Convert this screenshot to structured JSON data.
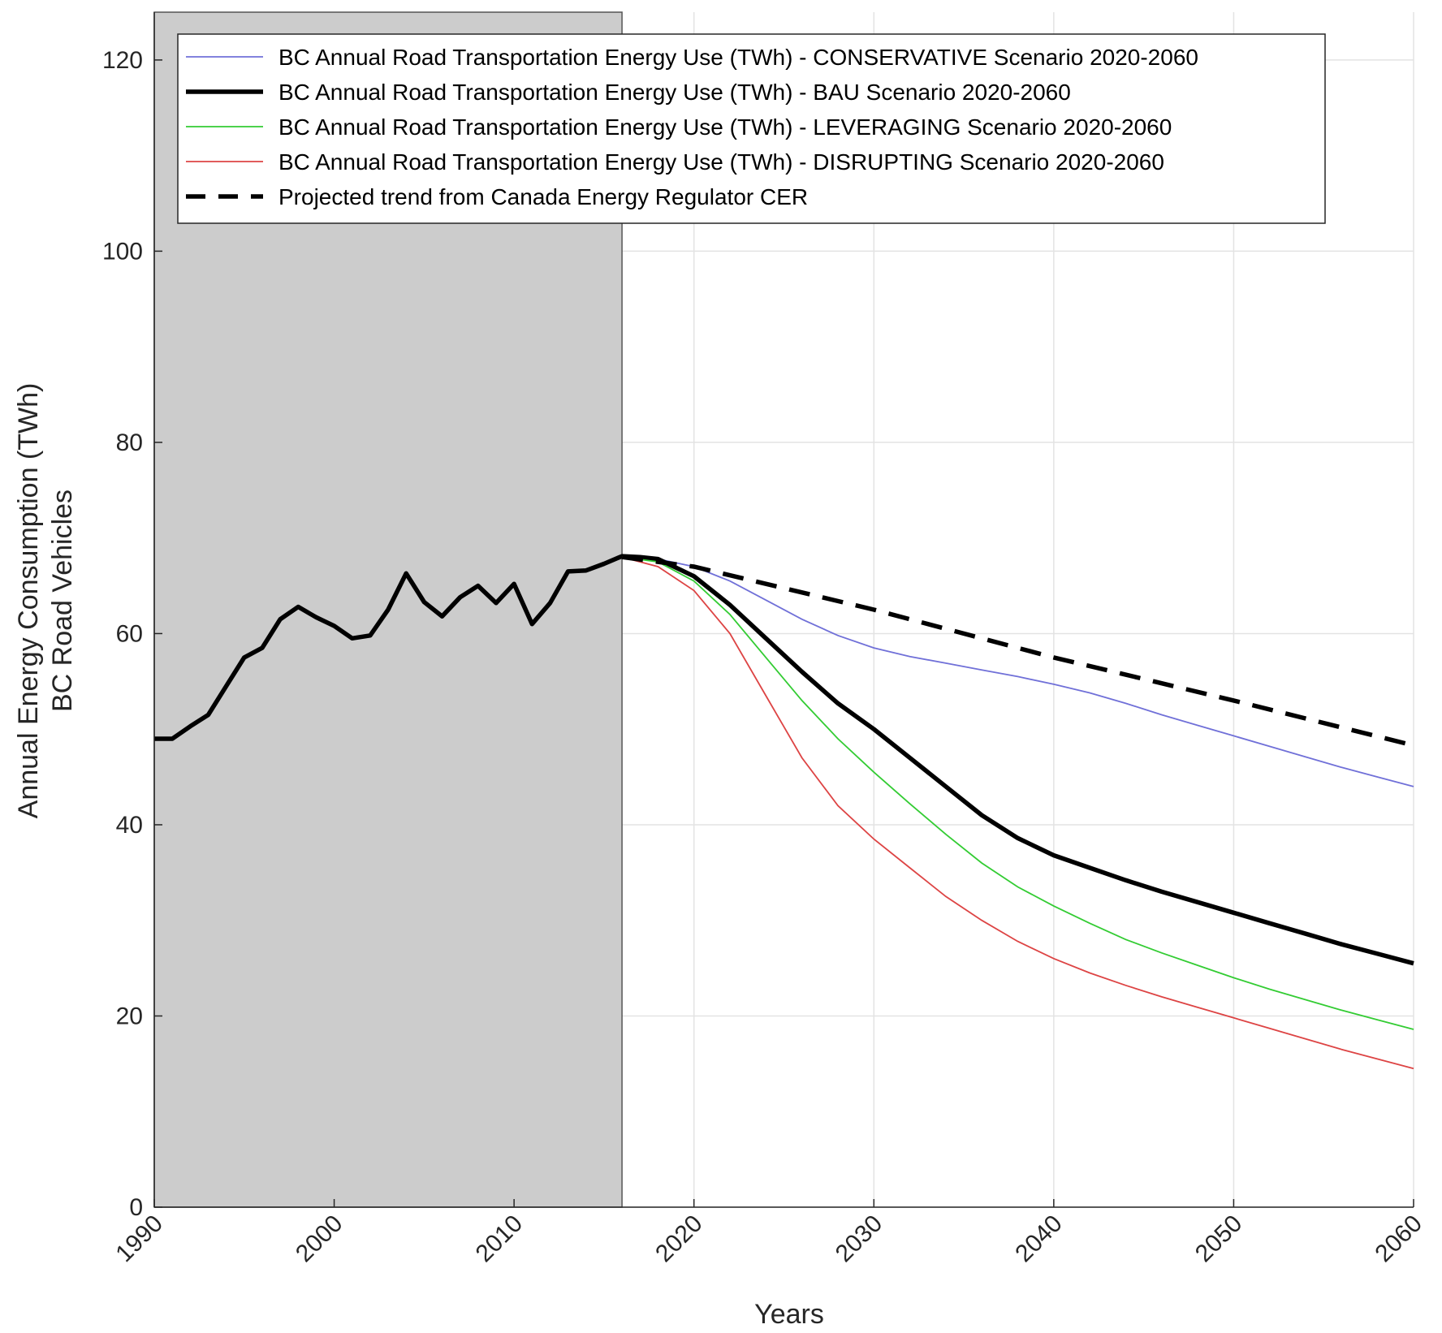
{
  "chart_data": {
    "type": "line",
    "xlabel": "Years",
    "ylabel_lines": [
      "Annual Energy Consumption (TWh)",
      "BC Road Vehicles"
    ],
    "xlim": [
      1990,
      2060
    ],
    "ylim": [
      0,
      125
    ],
    "x_ticks": [
      1990,
      2000,
      2010,
      2020,
      2030,
      2040,
      2050,
      2060
    ],
    "y_ticks": [
      0,
      20,
      40,
      60,
      80,
      100,
      120
    ],
    "grid": true,
    "legend_position": "top",
    "historical_shading": {
      "from": 1990,
      "to": 2016,
      "color": "#cccccc"
    },
    "series": [
      {
        "name": "BC Annual Road Transportation Energy Use (TWh) - CONSERVATIVE Scenario 2020-2060",
        "color": "#7070d8",
        "style": "thin",
        "x": [
          2016,
          2018,
          2020,
          2022,
          2024,
          2026,
          2028,
          2030,
          2032,
          2034,
          2036,
          2038,
          2040,
          2042,
          2044,
          2046,
          2048,
          2050,
          2052,
          2054,
          2056,
          2058,
          2060
        ],
        "values": [
          68.0,
          67.8,
          67.0,
          65.5,
          63.5,
          61.5,
          59.8,
          58.5,
          57.6,
          56.9,
          56.2,
          55.5,
          54.7,
          53.8,
          52.7,
          51.5,
          50.4,
          49.3,
          48.2,
          47.1,
          46.0,
          45.0,
          44.0
        ]
      },
      {
        "name": "BC Annual Road Transportation Energy Use (TWh) - BAU Scenario 2020-2060",
        "color": "#000000",
        "style": "thick",
        "x": [
          1990,
          1991,
          1992,
          1993,
          1994,
          1995,
          1996,
          1997,
          1998,
          1999,
          2000,
          2001,
          2002,
          2003,
          2004,
          2005,
          2006,
          2007,
          2008,
          2009,
          2010,
          2011,
          2012,
          2013,
          2014,
          2015,
          2016,
          2017,
          2018,
          2020,
          2022,
          2024,
          2026,
          2028,
          2030,
          2032,
          2034,
          2036,
          2038,
          2040,
          2042,
          2044,
          2046,
          2048,
          2050,
          2052,
          2054,
          2056,
          2058,
          2060
        ],
        "values": [
          49.0,
          49.0,
          50.3,
          51.5,
          54.5,
          57.5,
          58.5,
          61.5,
          62.8,
          61.7,
          60.8,
          59.5,
          59.8,
          62.5,
          66.3,
          63.3,
          61.8,
          63.8,
          65.0,
          63.2,
          65.2,
          61.0,
          63.2,
          66.5,
          66.6,
          67.3,
          68.1,
          68.0,
          67.8,
          66.0,
          63.0,
          59.5,
          56.0,
          52.7,
          50.0,
          47.0,
          44.0,
          41.0,
          38.6,
          36.8,
          35.5,
          34.2,
          33.0,
          31.9,
          30.8,
          29.7,
          28.6,
          27.5,
          26.5,
          25.5
        ]
      },
      {
        "name": "BC Annual Road Transportation Energy Use (TWh) - LEVERAGING Scenario 2020-2060",
        "color": "#33cc33",
        "style": "thin",
        "x": [
          2016,
          2018,
          2020,
          2022,
          2024,
          2026,
          2028,
          2030,
          2032,
          2034,
          2036,
          2038,
          2040,
          2042,
          2044,
          2046,
          2048,
          2050,
          2052,
          2054,
          2056,
          2058,
          2060
        ],
        "values": [
          68.0,
          67.5,
          65.5,
          62.0,
          57.5,
          53.0,
          49.0,
          45.5,
          42.2,
          39.0,
          36.0,
          33.5,
          31.5,
          29.7,
          28.0,
          26.6,
          25.3,
          24.0,
          22.8,
          21.7,
          20.6,
          19.6,
          18.6
        ]
      },
      {
        "name": "BC Annual Road Transportation Energy Use (TWh) - DISRUPTING Scenario 2020-2060",
        "color": "#dd4444",
        "style": "thin",
        "x": [
          2016,
          2018,
          2020,
          2022,
          2024,
          2026,
          2028,
          2030,
          2032,
          2034,
          2036,
          2038,
          2040,
          2042,
          2044,
          2046,
          2048,
          2050,
          2052,
          2054,
          2056,
          2058,
          2060
        ],
        "values": [
          68.0,
          67.0,
          64.5,
          60.0,
          53.5,
          47.0,
          42.0,
          38.5,
          35.5,
          32.5,
          30.0,
          27.8,
          26.0,
          24.5,
          23.2,
          22.0,
          20.9,
          19.8,
          18.7,
          17.6,
          16.5,
          15.5,
          14.5
        ]
      },
      {
        "name": "Projected trend from Canada Energy Regulator CER",
        "color": "#000000",
        "style": "dashed",
        "x": [
          2016,
          2020,
          2030,
          2040,
          2050,
          2060
        ],
        "values": [
          68.0,
          67.0,
          62.5,
          57.5,
          53.0,
          48.3
        ]
      }
    ]
  }
}
